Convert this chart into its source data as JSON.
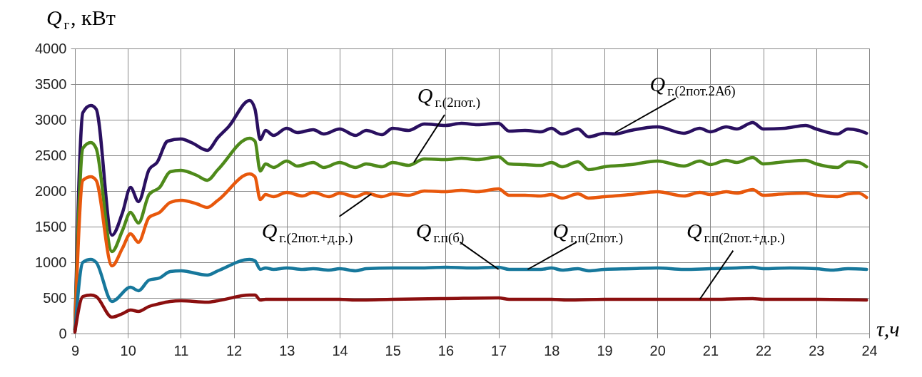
{
  "chart_data": {
    "type": "line",
    "xlabel": "τ,ч",
    "ylabel": "Q$_{г}$, кВт",
    "xlim": [
      9,
      24
    ],
    "ylim": [
      0,
      4000
    ],
    "xticks": [
      9,
      10,
      11,
      12,
      13,
      14,
      15,
      16,
      17,
      18,
      19,
      20,
      21,
      22,
      23,
      24
    ],
    "yticks": [
      0,
      500,
      1000,
      1500,
      2000,
      2500,
      3000,
      3500,
      4000
    ],
    "grid": true,
    "legend": false,
    "marker": "none",
    "line_style": "solid",
    "series": [
      {
        "color": "#2a1060",
        "x": [
          9.0,
          9.15,
          9.3,
          9.4,
          9.7,
          9.9,
          10.05,
          10.2,
          10.4,
          10.55,
          10.75,
          11.0,
          11.2,
          11.5,
          11.7,
          11.9,
          12.3,
          12.4,
          12.5,
          12.6,
          12.75,
          13.0,
          13.2,
          13.5,
          13.7,
          14.0,
          14.3,
          14.5,
          14.8,
          15.0,
          15.3,
          15.6,
          16.0,
          16.3,
          16.6,
          17.0,
          17.2,
          17.5,
          17.8,
          18.0,
          18.2,
          18.5,
          18.7,
          19.0,
          19.2,
          19.5,
          20.0,
          20.5,
          20.8,
          21.0,
          21.3,
          21.5,
          21.8,
          22.0,
          22.4,
          22.8,
          23.0,
          23.4,
          23.6,
          23.8,
          23.95
        ],
        "values": [
          50,
          3100,
          3200,
          3150,
          1380,
          1700,
          2050,
          1850,
          2300,
          2400,
          2700,
          2730,
          2680,
          2570,
          2750,
          2900,
          3270,
          3150,
          2720,
          2850,
          2780,
          2880,
          2820,
          2860,
          2800,
          2870,
          2780,
          2850,
          2790,
          2880,
          2850,
          2940,
          2920,
          2950,
          2930,
          2950,
          2840,
          2850,
          2830,
          2880,
          2800,
          2870,
          2760,
          2810,
          2800,
          2850,
          2900,
          2810,
          2880,
          2830,
          2900,
          2870,
          2960,
          2870,
          2880,
          2920,
          2870,
          2800,
          2870,
          2850,
          2810
        ]
      },
      {
        "color": "#4e8a1a",
        "x": [
          9.0,
          9.15,
          9.3,
          9.4,
          9.7,
          9.9,
          10.05,
          10.2,
          10.4,
          10.6,
          10.8,
          11.0,
          11.3,
          11.5,
          11.7,
          12.3,
          12.4,
          12.5,
          12.6,
          12.75,
          13.0,
          13.2,
          13.5,
          13.7,
          14.0,
          14.3,
          14.5,
          14.8,
          15.0,
          15.3,
          15.6,
          16.0,
          16.3,
          16.6,
          17.0,
          17.2,
          17.5,
          17.8,
          18.0,
          18.2,
          18.5,
          18.7,
          19.0,
          19.5,
          20.0,
          20.5,
          20.8,
          21.0,
          21.3,
          21.5,
          21.8,
          22.0,
          22.4,
          22.8,
          23.0,
          23.4,
          23.6,
          23.8,
          23.95
        ],
        "values": [
          50,
          2600,
          2680,
          2600,
          1150,
          1450,
          1700,
          1550,
          1950,
          2050,
          2270,
          2290,
          2220,
          2150,
          2300,
          2740,
          2700,
          2280,
          2380,
          2330,
          2420,
          2350,
          2400,
          2330,
          2400,
          2330,
          2380,
          2340,
          2400,
          2360,
          2450,
          2440,
          2460,
          2440,
          2480,
          2380,
          2370,
          2360,
          2400,
          2340,
          2410,
          2300,
          2340,
          2370,
          2420,
          2350,
          2420,
          2370,
          2430,
          2400,
          2470,
          2380,
          2410,
          2430,
          2380,
          2330,
          2410,
          2400,
          2340
        ]
      },
      {
        "color": "#e8580c",
        "x": [
          9.0,
          9.15,
          9.3,
          9.4,
          9.7,
          9.9,
          10.05,
          10.2,
          10.4,
          10.6,
          10.8,
          11.0,
          11.3,
          11.5,
          11.7,
          12.3,
          12.4,
          12.5,
          12.6,
          12.75,
          13.0,
          13.3,
          13.5,
          13.8,
          14.0,
          14.3,
          14.5,
          14.8,
          15.0,
          15.3,
          15.6,
          16.0,
          16.3,
          16.6,
          17.0,
          17.2,
          17.5,
          17.8,
          18.0,
          18.2,
          18.5,
          18.7,
          19.0,
          19.5,
          20.0,
          20.5,
          20.8,
          21.0,
          21.3,
          21.5,
          21.8,
          22.0,
          22.4,
          22.8,
          23.0,
          23.4,
          23.6,
          23.8,
          23.95
        ],
        "values": [
          50,
          2150,
          2200,
          2150,
          950,
          1200,
          1400,
          1280,
          1630,
          1700,
          1840,
          1870,
          1820,
          1770,
          1870,
          2240,
          2200,
          1880,
          1950,
          1920,
          1980,
          1930,
          1980,
          1920,
          1970,
          1920,
          1970,
          1920,
          1960,
          1940,
          2000,
          1990,
          2010,
          1990,
          2030,
          1940,
          1940,
          1930,
          1950,
          1900,
          1960,
          1900,
          1920,
          1950,
          1990,
          1930,
          1980,
          1950,
          1990,
          1970,
          2020,
          1940,
          1960,
          1970,
          1940,
          1920,
          1960,
          1970,
          1910
        ]
      },
      {
        "color": "#17789c",
        "x": [
          9.0,
          9.15,
          9.3,
          9.4,
          9.7,
          10.05,
          10.2,
          10.4,
          10.6,
          10.8,
          11.0,
          11.5,
          11.7,
          12.3,
          12.4,
          12.5,
          12.6,
          12.75,
          13.0,
          13.3,
          13.5,
          13.8,
          14.0,
          14.3,
          14.5,
          15.0,
          15.5,
          16.0,
          16.5,
          17.0,
          17.2,
          17.8,
          18.0,
          18.2,
          18.5,
          18.7,
          19.0,
          19.5,
          20.0,
          20.5,
          21.0,
          21.5,
          21.8,
          22.0,
          22.5,
          23.0,
          23.3,
          23.6,
          23.95
        ],
        "values": [
          30,
          1000,
          1040,
          1000,
          450,
          650,
          600,
          750,
          780,
          870,
          880,
          820,
          880,
          1040,
          1020,
          900,
          920,
          900,
          920,
          900,
          910,
          890,
          910,
          880,
          910,
          920,
          920,
          930,
          920,
          930,
          900,
          900,
          920,
          890,
          910,
          880,
          900,
          910,
          920,
          900,
          910,
          920,
          930,
          910,
          920,
          910,
          890,
          910,
          900
        ]
      },
      {
        "color": "#8b0f0f",
        "x": [
          9.0,
          9.15,
          9.3,
          9.4,
          9.7,
          9.9,
          10.05,
          10.2,
          10.4,
          10.6,
          10.8,
          11.0,
          11.5,
          11.7,
          12.3,
          12.4,
          12.5,
          12.6,
          13.0,
          14.0,
          14.3,
          15.0,
          16.0,
          17.0,
          17.2,
          18.0,
          18.3,
          19.0,
          20.0,
          21.0,
          21.8,
          22.0,
          23.0,
          23.95
        ],
        "values": [
          20,
          520,
          540,
          520,
          230,
          280,
          330,
          310,
          380,
          420,
          450,
          460,
          440,
          460,
          540,
          540,
          470,
          480,
          480,
          480,
          470,
          480,
          490,
          500,
          480,
          480,
          470,
          480,
          480,
          480,
          490,
          480,
          480,
          470
        ]
      }
    ],
    "annotations": [
      {
        "text": "Q$_{г.(2пот.)}$",
        "x": 15.4,
        "y": 2400
      },
      {
        "text": "Q$_{г.(2пот.2Аб)}$",
        "x": 19.2,
        "y": 2820
      },
      {
        "text": "Q$_{г.(2пот.+д.р.)}$",
        "x": 14.6,
        "y": 1960
      },
      {
        "text": "Q$_{г.п(б)}$",
        "x": 17.0,
        "y": 900
      },
      {
        "text": "Q$_{г.п(2пот.)}$",
        "x": 17.55,
        "y": 900
      },
      {
        "text": "Q$_{г.п(2пот.+д.р.)}$",
        "x": 20.8,
        "y": 480
      }
    ]
  }
}
